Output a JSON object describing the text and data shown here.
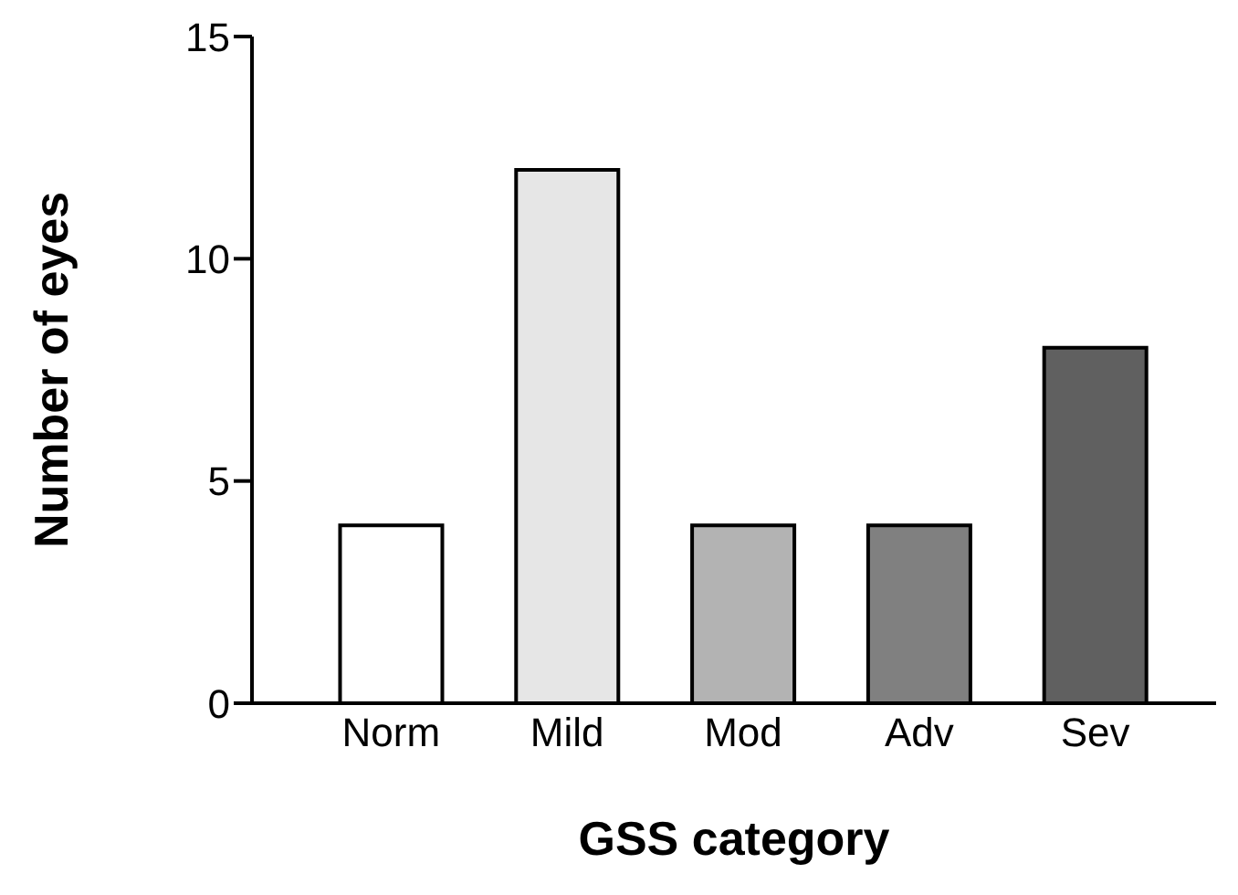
{
  "chart_data": {
    "type": "bar",
    "xlabel": "GSS category",
    "ylabel": "Number of eyes",
    "categories": [
      "Norm",
      "Mild",
      "Mod",
      "Adv",
      "Sev"
    ],
    "values": [
      4,
      12,
      4,
      4,
      8
    ],
    "colors": [
      "#ffffff",
      "#e6e6e6",
      "#b3b3b3",
      "#808080",
      "#606060"
    ],
    "ylim": [
      0,
      15
    ],
    "yticks": [
      0,
      5,
      10,
      15
    ],
    "grid": false,
    "legend": false
  }
}
